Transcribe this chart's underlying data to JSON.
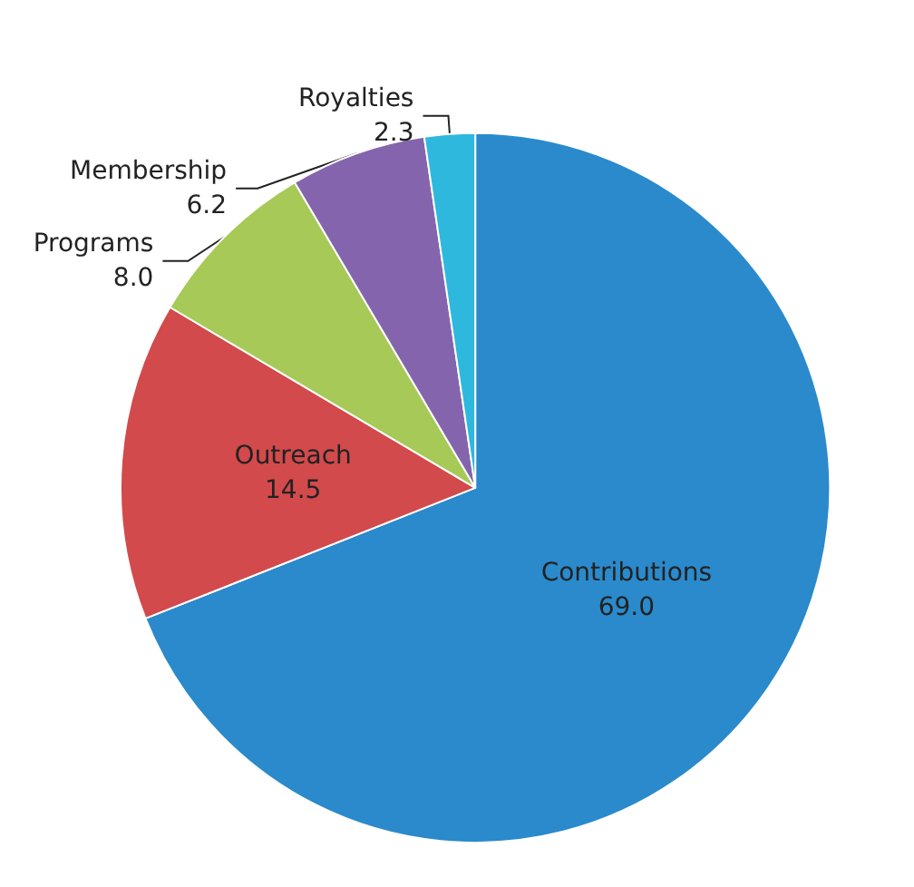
{
  "chart_data": {
    "type": "pie",
    "categories": [
      "Contributions",
      "Outreach",
      "Programs",
      "Membership",
      "Royalties"
    ],
    "values": [
      69.0,
      14.5,
      8.0,
      6.2,
      2.3
    ],
    "value_labels": [
      "69.0",
      "14.5",
      "8.0",
      "6.2",
      "2.3"
    ],
    "colors": [
      "#2a8acb",
      "#d24a4c",
      "#a6c957",
      "#8465ad",
      "#2fb8dd"
    ]
  }
}
